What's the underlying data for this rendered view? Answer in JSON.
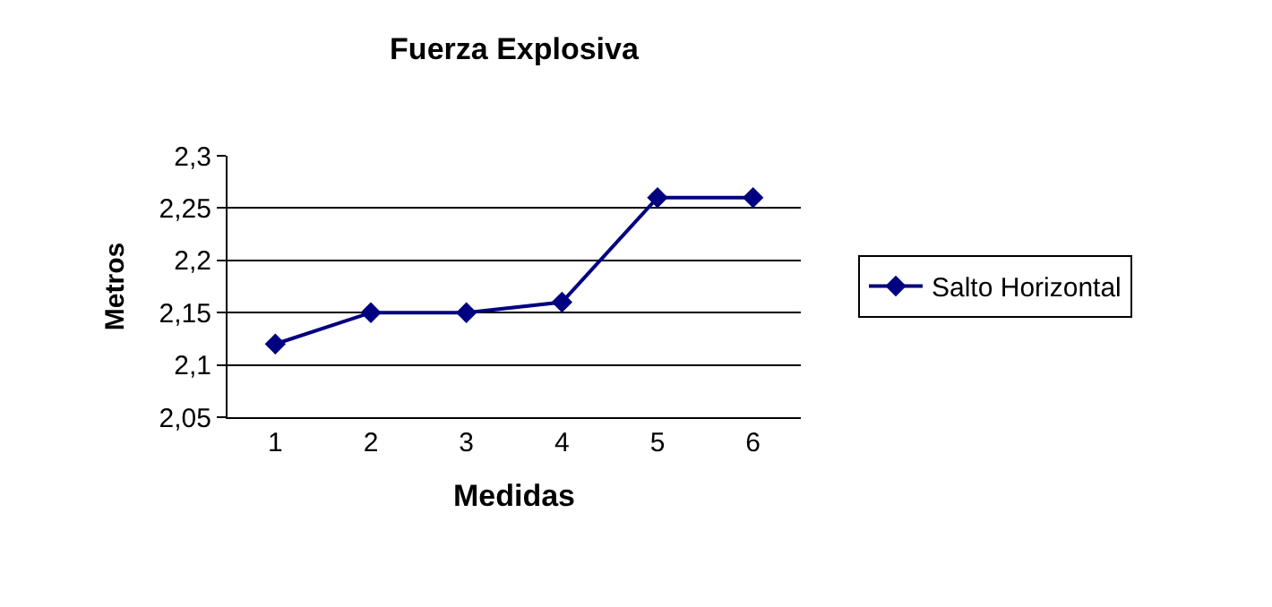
{
  "chart_data": {
    "type": "line",
    "title": "Fuerza Explosiva",
    "xlabel": "Medidas",
    "ylabel": "Metros",
    "categories": [
      "1",
      "2",
      "3",
      "4",
      "5",
      "6"
    ],
    "series": [
      {
        "name": "Salto Horizontal",
        "color": "#000080",
        "values": [
          2.12,
          2.15,
          2.15,
          2.16,
          2.26,
          2.26
        ]
      }
    ],
    "ylim": [
      2.05,
      2.3
    ],
    "yticks": [
      {
        "value": 2.05,
        "label": "2,05"
      },
      {
        "value": 2.1,
        "label": "2,1"
      },
      {
        "value": 2.15,
        "label": "2,15"
      },
      {
        "value": 2.2,
        "label": "2,2"
      },
      {
        "value": 2.25,
        "label": "2,25"
      },
      {
        "value": 2.3,
        "label": "2,3"
      }
    ],
    "grid": "y",
    "legend": "right",
    "marker": "diamond",
    "line_style": "solid"
  }
}
